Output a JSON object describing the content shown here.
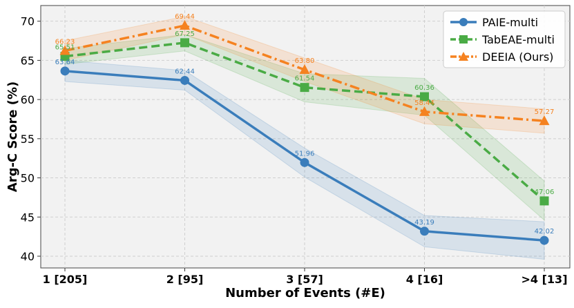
{
  "chart_data": {
    "type": "line",
    "title": "",
    "xlabel": "Number of Events (#E)",
    "ylabel": "Arg-C Score (%)",
    "categories": [
      "1 [205]",
      "2 [95]",
      "3 [57]",
      "4 [16]",
      ">4 [13]"
    ],
    "ylim": [
      38.5,
      72
    ],
    "yticks": [
      40,
      45,
      50,
      55,
      60,
      65,
      70
    ],
    "grid": true,
    "legend_position": "top-right",
    "series": [
      {
        "name": "PAIE-multi",
        "values": [
          63.64,
          62.44,
          51.96,
          43.19,
          42.02
        ],
        "labels": [
          "63.64",
          "62.44",
          "51.96",
          "43.19",
          "42.02"
        ],
        "band_low": [
          62.3,
          61.2,
          50.1,
          41.2,
          39.6
        ],
        "band_high": [
          65.0,
          63.7,
          53.8,
          45.2,
          44.4
        ],
        "color": "#3a7dbb",
        "marker": "circle",
        "dash": "solid"
      },
      {
        "name": "TabEAE-multi",
        "values": [
          65.51,
          67.25,
          61.54,
          60.36,
          47.06
        ],
        "labels": [
          "65.51",
          "67.25",
          "61.54",
          "60.36",
          "47.06"
        ],
        "band_low": [
          64.5,
          66.2,
          59.7,
          58.0,
          44.6
        ],
        "band_high": [
          66.5,
          68.3,
          63.3,
          62.7,
          49.6
        ],
        "color": "#4aab45",
        "marker": "square",
        "dash": "dashed"
      },
      {
        "name": "DEEIA (Ours)",
        "values": [
          66.23,
          69.44,
          63.8,
          58.44,
          57.27
        ],
        "labels": [
          "66.23",
          "69.44",
          "63.80",
          "58.44",
          "57.27"
        ],
        "band_low": [
          65.0,
          68.3,
          62.3,
          56.9,
          55.7
        ],
        "band_high": [
          67.5,
          70.6,
          65.3,
          60.0,
          58.8
        ],
        "color": "#f58220",
        "marker": "triangle",
        "dash": "dashdot"
      }
    ]
  }
}
